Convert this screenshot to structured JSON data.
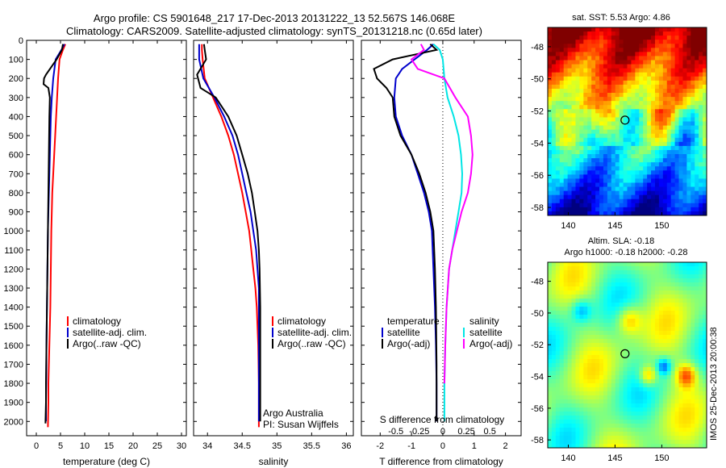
{
  "header": {
    "line1": "Argo profile: CS 5901648_217 17-Dec-2013 20131222_13 52.567S 146.068E",
    "line2": "Climatology: CARS2009. Satellite-adjusted climatology: synTS_20131218.nc (0.65d later)"
  },
  "colors": {
    "climatology": "#ff0000",
    "satellite": "#0000cc",
    "argo": "#000000",
    "sat_salt": "#00e5e5",
    "argo_salt": "#ff00ff"
  },
  "chart_data": [
    {
      "type": "line",
      "xlabel": "temperature (deg C)",
      "ylabel": "",
      "xlim": [
        -2,
        31
      ],
      "ylim": [
        2075,
        0
      ],
      "xticks": [
        "0",
        "5",
        "10",
        "15",
        "20",
        "25",
        "30"
      ],
      "xtick_values": [
        0,
        5,
        10,
        15,
        20,
        25,
        30
      ],
      "yticks": [
        "0",
        "100",
        "200",
        "300",
        "400",
        "500",
        "600",
        "700",
        "800",
        "900",
        "1000",
        "1100",
        "1200",
        "1300",
        "1400",
        "1500",
        "1600",
        "1700",
        "1800",
        "1900",
        "2000"
      ],
      "legend_position": "center-right",
      "legend": [
        "climatology",
        "satellite-adj. clim.",
        "Argo(..raw -QC)"
      ],
      "series": [
        {
          "name": "climatology",
          "color": "#ff0000",
          "x": [
            6.0,
            5.5,
            4.8,
            4.5,
            4.3,
            4.1,
            3.9,
            3.7,
            3.5,
            3.3,
            3.2,
            3.1,
            3.0,
            2.9,
            2.8,
            2.7,
            2.6,
            2.5,
            2.5,
            2.4
          ],
          "y": [
            20,
            50,
            100,
            200,
            300,
            400,
            500,
            600,
            700,
            800,
            900,
            1000,
            1200,
            1400,
            1500,
            1600,
            1700,
            1800,
            1900,
            2030
          ]
        },
        {
          "name": "satellite-adj. clim.",
          "color": "#0000cc",
          "x": [
            5.8,
            5.2,
            4.0,
            3.5,
            3.2,
            3.0,
            2.9,
            2.8,
            2.7,
            2.6,
            2.5,
            2.4,
            2.3,
            2.2,
            2.1,
            2.05,
            2.0,
            2.0
          ],
          "y": [
            20,
            50,
            100,
            200,
            300,
            400,
            500,
            600,
            700,
            800,
            900,
            1000,
            1200,
            1400,
            1600,
            1800,
            1900,
            2000
          ]
        },
        {
          "name": "Argo(..raw -QC)",
          "color": "#000000",
          "x": [
            5.5,
            5.3,
            4.2,
            2.0,
            1.6,
            1.5,
            2.5,
            2.8,
            2.7,
            2.6,
            2.5,
            2.4,
            2.3,
            2.2,
            2.1,
            2.0,
            2.0,
            1.9,
            1.9
          ],
          "y": [
            20,
            50,
            100,
            180,
            200,
            230,
            250,
            300,
            400,
            600,
            800,
            1000,
            1200,
            1400,
            1600,
            1800,
            1900,
            2000,
            2010
          ]
        }
      ]
    },
    {
      "type": "line",
      "xlabel": "salinity",
      "xlim": [
        33.8,
        36.1
      ],
      "ylim": [
        2075,
        0
      ],
      "xticks": [
        "34",
        "34.5",
        "35",
        "35.5",
        "36"
      ],
      "xtick_values": [
        34,
        34.5,
        35,
        35.5,
        36
      ],
      "legend": [
        "climatology",
        "satellite-adj. clim.",
        "Argo(..raw -QC)"
      ],
      "annotations": [
        "Argo Australia",
        "PI: Susan Wijffels"
      ],
      "series": [
        {
          "name": "climatology",
          "color": "#ff0000",
          "x": [
            33.92,
            33.92,
            33.93,
            33.96,
            34.08,
            34.2,
            34.3,
            34.38,
            34.44,
            34.5,
            34.55,
            34.6,
            34.63,
            34.66,
            34.69,
            34.71,
            34.72,
            34.73,
            34.74,
            34.74
          ],
          "y": [
            20,
            50,
            100,
            200,
            300,
            400,
            500,
            600,
            700,
            800,
            900,
            1000,
            1100,
            1200,
            1300,
            1400,
            1500,
            1600,
            1800,
            2030
          ]
        },
        {
          "name": "satellite-adj. clim.",
          "color": "#0000cc",
          "x": [
            33.88,
            33.88,
            33.88,
            33.94,
            34.1,
            34.24,
            34.36,
            34.44,
            34.5,
            34.56,
            34.62,
            34.66,
            34.7,
            34.72,
            34.74,
            34.74,
            34.74,
            34.74,
            34.74
          ],
          "y": [
            20,
            50,
            100,
            200,
            300,
            400,
            500,
            600,
            700,
            800,
            900,
            1000,
            1100,
            1200,
            1300,
            1400,
            1600,
            1800,
            2000
          ]
        },
        {
          "name": "Argo(..raw -QC)",
          "color": "#000000",
          "x": [
            33.95,
            33.96,
            33.98,
            33.85,
            33.9,
            34.12,
            34.3,
            34.42,
            34.5,
            34.58,
            34.64,
            34.68,
            34.72,
            34.74,
            34.75,
            34.76,
            34.76,
            34.76,
            34.76
          ],
          "y": [
            20,
            50,
            100,
            180,
            250,
            300,
            400,
            500,
            600,
            700,
            800,
            900,
            1000,
            1100,
            1200,
            1400,
            1600,
            1800,
            2000
          ]
        }
      ]
    },
    {
      "type": "line",
      "xlabel": "T difference from climatology",
      "top_label": "S difference from climatology",
      "xlim": [
        -2.6,
        2.5
      ],
      "ylim": [
        2075,
        0
      ],
      "xticks": [
        "-2",
        "-1",
        "0",
        "1",
        "2"
      ],
      "xtick_values": [
        -2,
        -1,
        0,
        1,
        2
      ],
      "sticks": [
        "-0.5",
        "-0.25",
        "0",
        "0.25",
        "0.5"
      ],
      "stick_values": [
        -1.5,
        -0.75,
        0,
        0.75,
        1.5
      ],
      "legend_left_title": "temperature",
      "legend_right_title": "salinity",
      "legend_left": [
        "satellite",
        "Argo(-adj)"
      ],
      "legend_right": [
        "satellite",
        "Argo(-adj)"
      ],
      "series": [
        {
          "name": "satellite",
          "color": "#0000cc",
          "x": [
            -0.3,
            -0.5,
            -0.9,
            -1.3,
            -1.5,
            -1.55,
            -1.5,
            -1.3,
            -1.0,
            -0.8,
            -0.6,
            -0.45,
            -0.35,
            -0.3,
            -0.25,
            -0.22,
            -0.2,
            -0.2
          ],
          "y": [
            20,
            50,
            100,
            150,
            200,
            300,
            400,
            500,
            600,
            700,
            800,
            900,
            1000,
            1200,
            1400,
            1600,
            1800,
            2000
          ]
        },
        {
          "name": "Argo(-adj)",
          "color": "#000000",
          "x": [
            -0.4,
            -0.2,
            -1.6,
            -2.2,
            -2.1,
            -1.8,
            -1.6,
            -1.55,
            -1.35,
            -1.0,
            -0.75,
            -0.55,
            -0.4,
            -0.3,
            -0.25,
            -0.22,
            -0.2,
            -0.2
          ],
          "y": [
            20,
            50,
            100,
            150,
            200,
            250,
            300,
            400,
            500,
            600,
            700,
            800,
            900,
            1000,
            1200,
            1400,
            1700,
            2000
          ]
        },
        {
          "name": "satellite",
          "color": "#00e5e5",
          "x": [
            -0.3,
            -0.1,
            0.0,
            0.05,
            0.15,
            0.35,
            0.5,
            0.58,
            0.62,
            0.6,
            0.5,
            0.4,
            0.3,
            0.2,
            0.12,
            0.08,
            0.05,
            0.05
          ],
          "y": [
            20,
            50,
            100,
            200,
            300,
            400,
            500,
            600,
            700,
            800,
            900,
            1000,
            1100,
            1200,
            1400,
            1600,
            1800,
            2000
          ]
        },
        {
          "name": "Argo(-adj)",
          "color": "#ff00ff",
          "x": [
            -0.7,
            -0.6,
            -1.0,
            -0.8,
            0.05,
            0.4,
            0.8,
            0.9,
            0.95,
            0.9,
            0.8,
            0.6,
            0.45,
            0.3,
            0.2,
            0.12,
            0.08,
            0.05
          ],
          "y": [
            20,
            50,
            100,
            150,
            200,
            300,
            400,
            500,
            600,
            700,
            800,
            900,
            1000,
            1100,
            1200,
            1400,
            1600,
            1800
          ]
        }
      ]
    },
    {
      "type": "heatmap",
      "title": "sat. SST: 5.53 Argo: 4.86",
      "xticks": [
        "140",
        "145",
        "150"
      ],
      "xtick_values": [
        140,
        145,
        150
      ],
      "yticks": [
        "-48",
        "-50",
        "-52",
        "-54",
        "-56",
        "-58"
      ],
      "ytick_values": [
        -48,
        -50,
        -52,
        -54,
        -56,
        -58
      ],
      "xlim": [
        137.8,
        154.8
      ],
      "ylim": [
        -58.5,
        -46.8
      ],
      "marker": {
        "lon": 146.068,
        "lat": -52.567
      }
    },
    {
      "type": "heatmap",
      "title": "Altim. SLA: -0.18",
      "subtitle": "Argo h1000: -0.18 h2000: -0.28",
      "side_label": "IMOS 25-Dec-2013 20:00:38",
      "xticks": [
        "140",
        "145",
        "150"
      ],
      "xtick_values": [
        140,
        145,
        150
      ],
      "yticks": [
        "-48",
        "-50",
        "-52",
        "-54",
        "-56",
        "-58"
      ],
      "ytick_values": [
        -48,
        -50,
        -52,
        -54,
        -56,
        -58
      ],
      "xlim": [
        137.8,
        154.8
      ],
      "ylim": [
        -58.5,
        -46.8
      ],
      "marker": {
        "lon": 146.068,
        "lat": -52.567
      }
    }
  ]
}
